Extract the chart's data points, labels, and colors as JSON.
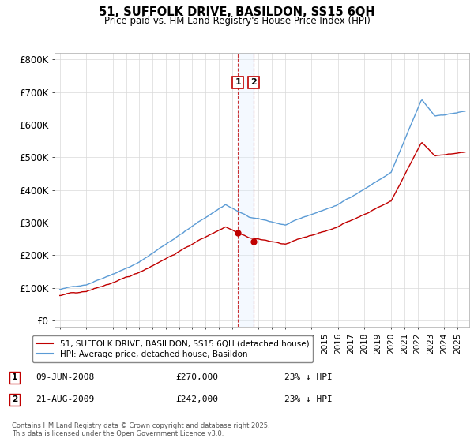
{
  "title": "51, SUFFOLK DRIVE, BASILDON, SS15 6QH",
  "subtitle": "Price paid vs. HM Land Registry's House Price Index (HPI)",
  "ylabel_ticks": [
    "£0",
    "£100K",
    "£200K",
    "£300K",
    "£400K",
    "£500K",
    "£600K",
    "£700K",
    "£800K"
  ],
  "ytick_values": [
    0,
    100000,
    200000,
    300000,
    400000,
    500000,
    600000,
    700000,
    800000
  ],
  "ylim": [
    -20000,
    820000
  ],
  "hpi_color": "#5b9bd5",
  "price_color": "#c00000",
  "annotation1_date": "09-JUN-2008",
  "annotation1_price": "£270,000",
  "annotation1_hpi": "23% ↓ HPI",
  "annotation1_year": 2008.44,
  "annotation2_date": "21-AUG-2009",
  "annotation2_price": "£242,000",
  "annotation2_hpi": "23% ↓ HPI",
  "annotation2_year": 2009.63,
  "legend_label1": "51, SUFFOLK DRIVE, BASILDON, SS15 6QH (detached house)",
  "legend_label2": "HPI: Average price, detached house, Basildon",
  "footnote": "Contains HM Land Registry data © Crown copyright and database right 2025.\nThis data is licensed under the Open Government Licence v3.0.",
  "background_color": "#ffffff",
  "grid_color": "#d9d9d9",
  "shade_color": "#ddeeff"
}
